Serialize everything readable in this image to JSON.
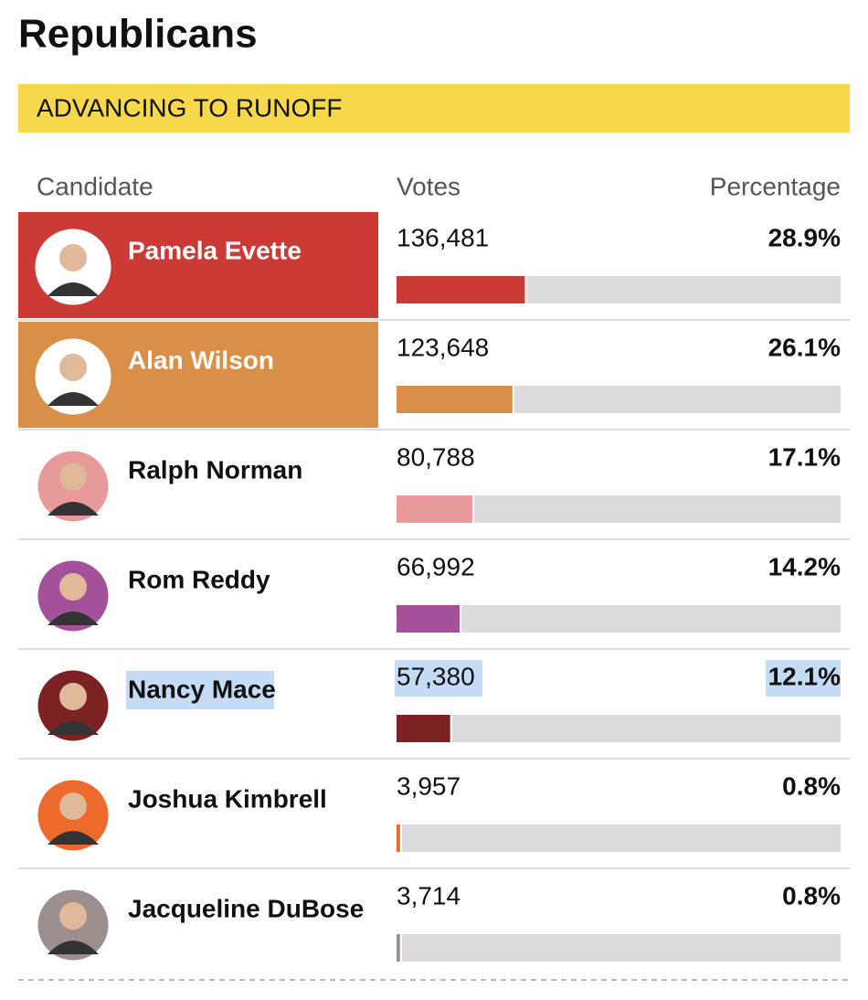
{
  "header": {
    "title": "Republicans",
    "banner": "ADVANCING TO RUNOFF"
  },
  "table": {
    "columns": [
      "Candidate",
      "Votes",
      "Percentage"
    ],
    "rows": [
      {
        "name": "Pamela Evette",
        "votes": "136,481",
        "percentage": {
          "value": 28.9,
          "label": "28.9%"
        },
        "color": "#cc3a35",
        "avatar": "#ffffff",
        "advancing": true
      },
      {
        "name": "Alan Wilson",
        "votes": "123,648",
        "percentage": {
          "value": 26.1,
          "label": "26.1%"
        },
        "color": "#d98f47",
        "avatar": "#ffffff",
        "advancing": true
      },
      {
        "name": "Ralph Norman",
        "votes": "80,788",
        "percentage": {
          "value": 17.1,
          "label": "17.1%"
        },
        "color": "#e89a9a",
        "avatar": "#e89a9a",
        "advancing": false
      },
      {
        "name": "Rom Reddy",
        "votes": "66,992",
        "percentage": {
          "value": 14.2,
          "label": "14.2%"
        },
        "color": "#a5509b",
        "avatar": "#a5509b",
        "advancing": false
      },
      {
        "name": "Nancy Mace",
        "votes": "57,380",
        "percentage": {
          "value": 12.1,
          "label": "12.1%"
        },
        "color": "#7d2222",
        "avatar": "#7d2222",
        "advancing": false,
        "selected": true
      },
      {
        "name": "Joshua Kimbrell",
        "votes": "3,957",
        "percentage": {
          "value": 0.8,
          "label": "0.8%"
        },
        "color": "#ee6a2c",
        "avatar": "#ee6a2c",
        "advancing": false
      },
      {
        "name": "Jacqueline DuBose",
        "votes": "3,714",
        "percentage": {
          "value": 0.8,
          "label": "0.8%"
        },
        "color": "#9e8f8f",
        "avatar": "#9e8f8f",
        "advancing": false
      }
    ]
  }
}
